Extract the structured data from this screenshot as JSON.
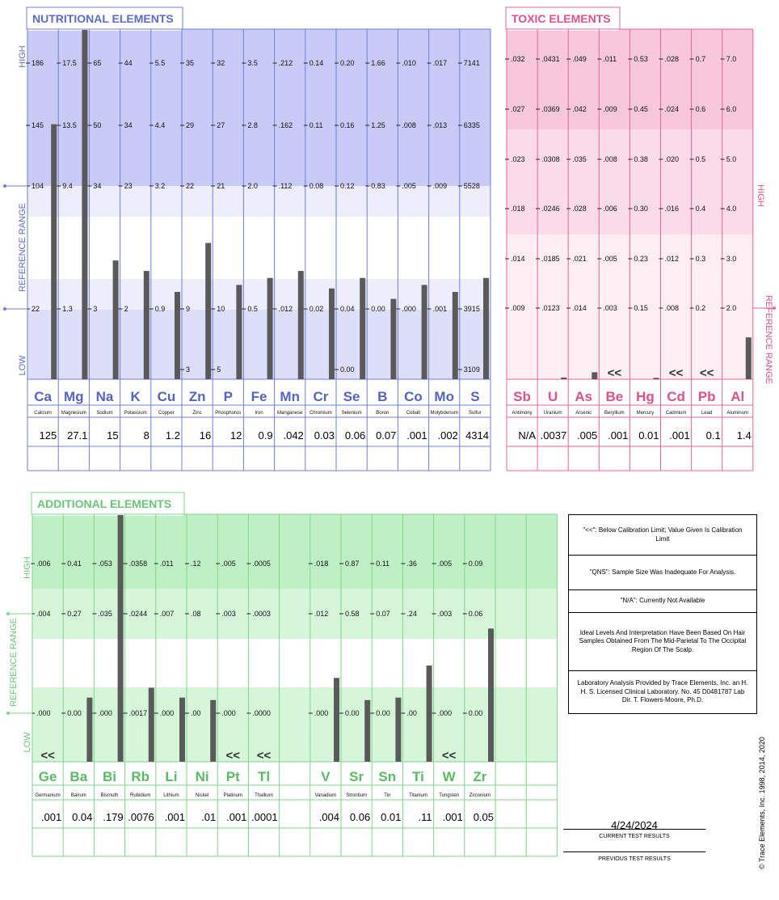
{
  "nutritional": {
    "title": "NUTRITIONAL ELEMENTS",
    "side_high": "HIGH",
    "side_ref": "REFERENCE RANGE",
    "side_low": "LOW",
    "elements": [
      {
        "sym": "Ca",
        "name": "Calcium",
        "result": "125",
        "ticks": [
          "186",
          "145",
          "104",
          "",
          "22",
          ""
        ],
        "level": 0.73
      },
      {
        "sym": "Mg",
        "name": "Magnesium",
        "result": "27.1",
        "ticks": [
          "17.5",
          "13.5",
          "9.4",
          "",
          "1.3",
          ""
        ],
        "level": 1.0
      },
      {
        "sym": "Na",
        "name": "Sodium",
        "result": "15",
        "ticks": [
          "65",
          "50",
          "34",
          "",
          "3",
          ""
        ],
        "level": 0.34
      },
      {
        "sym": "K",
        "name": "Potassium",
        "result": "8",
        "ticks": [
          "44",
          "34",
          "23",
          "",
          "2",
          ""
        ],
        "level": 0.31
      },
      {
        "sym": "Cu",
        "name": "Copper",
        "result": "1.2",
        "ticks": [
          "5.5",
          "4.4",
          "3.2",
          "",
          "0.9",
          ""
        ],
        "level": 0.25
      },
      {
        "sym": "Zn",
        "name": "Zinc",
        "result": "16",
        "ticks": [
          "35",
          "29",
          "22",
          "",
          "9",
          "3"
        ],
        "level": 0.39
      },
      {
        "sym": "P",
        "name": "Phosphorus",
        "result": "12",
        "ticks": [
          "32",
          "27",
          "21",
          "",
          "10",
          "5"
        ],
        "level": 0.27
      },
      {
        "sym": "Fe",
        "name": "Iron",
        "result": "0.9",
        "ticks": [
          "3.5",
          "2.8",
          "2.0",
          "",
          "0.5",
          ""
        ],
        "level": 0.29
      },
      {
        "sym": "Mn",
        "name": "Manganese",
        "result": ".042",
        "ticks": [
          ".212",
          ".162",
          ".112",
          "",
          ".012",
          ""
        ],
        "level": 0.31
      },
      {
        "sym": "Cr",
        "name": "Chromium",
        "result": "0.03",
        "ticks": [
          "0.14",
          "0.11",
          "0.08",
          "",
          "0.02",
          ""
        ],
        "level": 0.26
      },
      {
        "sym": "Se",
        "name": "Selenium",
        "result": "0.06",
        "ticks": [
          "0.20",
          "0.16",
          "0.12",
          "",
          "0.04",
          "0.00"
        ],
        "level": 0.29
      },
      {
        "sym": "B",
        "name": "Boron",
        "result": "0.07",
        "ticks": [
          "1.66",
          "1.25",
          "0.83",
          "",
          "0.00",
          ""
        ],
        "level": 0.23
      },
      {
        "sym": "Co",
        "name": "Cobalt",
        "result": ".001",
        "ticks": [
          ".010",
          ".008",
          ".005",
          "",
          ".000",
          ""
        ],
        "level": 0.27
      },
      {
        "sym": "Mo",
        "name": "Molybdenum",
        "result": ".002",
        "ticks": [
          ".017",
          ".013",
          ".009",
          "",
          ".001",
          ""
        ],
        "level": 0.25
      },
      {
        "sym": "S",
        "name": "Sulfur",
        "result": "4314",
        "ticks": [
          "7141",
          "6335",
          "5528",
          "",
          "3915",
          "3109"
        ],
        "level": 0.29
      }
    ]
  },
  "toxic": {
    "title": "TOXIC ELEMENTS",
    "side_high": "HIGH",
    "side_ref": "REFERENCE RANGE",
    "elements": [
      {
        "sym": "Sb",
        "name": "Antimony",
        "result": "N/A",
        "ticks": [
          ".032",
          ".027",
          ".023",
          ".018",
          ".014",
          ".009"
        ],
        "level": 0,
        "below": false
      },
      {
        "sym": "U",
        "name": "Uranium",
        "result": ".0037",
        "ticks": [
          ".0431",
          ".0369",
          ".0308",
          ".0246",
          ".0185",
          ".0123"
        ],
        "level": 0.005,
        "below": false
      },
      {
        "sym": "As",
        "name": "Arsenic",
        "result": ".005",
        "ticks": [
          ".049",
          ".042",
          ".035",
          ".028",
          ".021",
          ".014"
        ],
        "level": 0.02,
        "below": false
      },
      {
        "sym": "Be",
        "name": "Beryllium",
        "result": ".001",
        "ticks": [
          ".011",
          ".009",
          ".008",
          ".006",
          ".005",
          ".003"
        ],
        "level": 0,
        "below": true
      },
      {
        "sym": "Hg",
        "name": "Mercury",
        "result": "0.01",
        "ticks": [
          "0.53",
          "0.45",
          "0.38",
          "0.30",
          "0.23",
          "0.15"
        ],
        "level": 0.004,
        "below": false
      },
      {
        "sym": "Cd",
        "name": "Cadmium",
        "result": ".001",
        "ticks": [
          ".028",
          ".024",
          ".020",
          ".016",
          ".012",
          ".008"
        ],
        "level": 0,
        "below": true
      },
      {
        "sym": "Pb",
        "name": "Lead",
        "result": "0.1",
        "ticks": [
          "0.7",
          "0.6",
          "0.5",
          "0.4",
          "0.3",
          "0.2"
        ],
        "level": 0,
        "below": true
      },
      {
        "sym": "Al",
        "name": "Aluminum",
        "result": "1.4",
        "ticks": [
          "7.0",
          "6.0",
          "5.0",
          "4.0",
          "3.0",
          "2.0"
        ],
        "level": 0.12,
        "below": false
      }
    ]
  },
  "additional": {
    "title": "ADDITIONAL ELEMENTS",
    "side_high": "HIGH",
    "side_ref": "REFERENCE RANGE",
    "side_low": "LOW",
    "elements": [
      {
        "sym": "Ge",
        "name": "Germanium",
        "result": ".001",
        "ticks": [
          ".006",
          ".004",
          ".000"
        ],
        "level": 0,
        "below": true
      },
      {
        "sym": "Ba",
        "name": "Barium",
        "result": "0.04",
        "ticks": [
          "0.41",
          "0.27",
          "0.00"
        ],
        "level": 0.26,
        "below": false
      },
      {
        "sym": "Bi",
        "name": "Bismuth",
        "result": ".179",
        "ticks": [
          ".053",
          ".035",
          ".000"
        ],
        "level": 1.0,
        "below": false
      },
      {
        "sym": "Rb",
        "name": "Rubidium",
        "result": ".0076",
        "ticks": [
          ".0358",
          ".0244",
          ".0017"
        ],
        "level": 0.3,
        "below": false
      },
      {
        "sym": "Li",
        "name": "Lithium",
        "result": ".001",
        "ticks": [
          ".011",
          ".007",
          ".000"
        ],
        "level": 0.26,
        "below": false
      },
      {
        "sym": "Ni",
        "name": "Nickel",
        "result": ".01",
        "ticks": [
          ".12",
          ".08",
          ".00"
        ],
        "level": 0.25,
        "below": false
      },
      {
        "sym": "Pt",
        "name": "Platinum",
        "result": ".001",
        "ticks": [
          ".005",
          ".003",
          ".000"
        ],
        "level": 0,
        "below": true
      },
      {
        "sym": "Tl",
        "name": "Thallium",
        "result": ".0001",
        "ticks": [
          ".0005",
          ".0003",
          ".0000"
        ],
        "level": 0,
        "below": true
      },
      {
        "sym": "",
        "name": "",
        "result": "",
        "ticks": [
          "",
          "",
          ""
        ],
        "level": 0,
        "below": false
      },
      {
        "sym": "V",
        "name": "Vanadium",
        "result": ".004",
        "ticks": [
          ".018",
          ".012",
          ".000"
        ],
        "level": 0.34,
        "below": false
      },
      {
        "sym": "Sr",
        "name": "Strontium",
        "result": "0.06",
        "ticks": [
          "0.87",
          "0.58",
          "0.00"
        ],
        "level": 0.25,
        "below": false
      },
      {
        "sym": "Sn",
        "name": "Tin",
        "result": "0.01",
        "ticks": [
          "0.11",
          "0.07",
          "0.00"
        ],
        "level": 0.26,
        "below": false
      },
      {
        "sym": "Ti",
        "name": "Titanium",
        "result": ".11",
        "ticks": [
          ".36",
          ".24",
          ".00"
        ],
        "level": 0.39,
        "below": false
      },
      {
        "sym": "W",
        "name": "Tungsten",
        "result": ".001",
        "ticks": [
          ".005",
          ".003",
          ".000"
        ],
        "level": 0,
        "below": true
      },
      {
        "sym": "Zr",
        "name": "Zirconium",
        "result": "0.05",
        "ticks": [
          "0.09",
          "0.06",
          "0.00"
        ],
        "level": 0.54,
        "below": false
      },
      {
        "sym": "",
        "name": "",
        "result": "",
        "ticks": [
          "",
          "",
          ""
        ],
        "level": 0,
        "below": false
      },
      {
        "sym": "",
        "name": "",
        "result": "",
        "ticks": [
          "",
          "",
          ""
        ],
        "level": 0,
        "below": false
      }
    ]
  },
  "below_marker": "<<",
  "notes": [
    "\"<<\": Below Calibration Limit; Value Given Is Calibration Limit",
    "\"QNS\": Sample Size Was Inadequate For Analysis.",
    "\"N/A\": Currently Not Available",
    "Ideal Levels And Interpretation Have Been Based On Hair Samples Obtained From The Mid-Parietal To The Occipital Region Of The Scalp.",
    "Laboratory Analysis Provided by Trace Elements, Inc. an H. H. S. Licensed Clinical Laboratory. No. 45 D0481787  Lab Dir. T. Flowers-Moore, Ph.D."
  ],
  "results": {
    "current_date": "4/24/2024",
    "current_label": "CURRENT TEST RESULTS",
    "previous_label": "PREVIOUS TEST RESULTS"
  },
  "copyright": "© Trace Elements, Inc. 1998, 2014, 2020",
  "colors": {
    "nutri_line": "#6f7fd8",
    "nutri_title": "#5b6bd6",
    "nutri_dark": "#c8cbf6",
    "nutri_mid": "#dcdefa",
    "nutri_light": "#eceefc",
    "nutri_symbol": "#5363c9",
    "tox_line": "#e8669a",
    "tox_title": "#e0508b",
    "tox_dark": "#f7c7dc",
    "tox_mid": "#fbdbe8",
    "tox_light": "#fdeef4",
    "tox_symbol": "#e0508b",
    "add_line": "#7fd68a",
    "add_title": "#66c873",
    "add_dark": "#bff0c5",
    "add_mid": "#d6f6da",
    "add_light": "#ebfbed",
    "add_symbol": "#57bd63",
    "bar": "#5a5a5a"
  },
  "chart_data": [
    {
      "type": "bar",
      "title": "NUTRITIONAL ELEMENTS",
      "categories": [
        "Ca",
        "Mg",
        "Na",
        "K",
        "Cu",
        "Zn",
        "P",
        "Fe",
        "Mn",
        "Cr",
        "Se",
        "B",
        "Co",
        "Mo",
        "S"
      ],
      "values": [
        125,
        27.1,
        15,
        8,
        1.2,
        16,
        12,
        0.9,
        0.042,
        0.03,
        0.06,
        0.07,
        0.001,
        0.002,
        4314
      ]
    },
    {
      "type": "bar",
      "title": "TOXIC ELEMENTS",
      "categories": [
        "Sb",
        "U",
        "As",
        "Be",
        "Hg",
        "Cd",
        "Pb",
        "Al"
      ],
      "values": [
        null,
        0.0037,
        0.005,
        0.001,
        0.01,
        0.001,
        0.1,
        1.4
      ]
    },
    {
      "type": "bar",
      "title": "ADDITIONAL ELEMENTS",
      "categories": [
        "Ge",
        "Ba",
        "Bi",
        "Rb",
        "Li",
        "Ni",
        "Pt",
        "Tl",
        "V",
        "Sr",
        "Sn",
        "Ti",
        "W",
        "Zr"
      ],
      "values": [
        0.001,
        0.04,
        0.179,
        0.0076,
        0.001,
        0.01,
        0.001,
        0.0001,
        0.004,
        0.06,
        0.01,
        0.11,
        0.001,
        0.05
      ]
    }
  ]
}
